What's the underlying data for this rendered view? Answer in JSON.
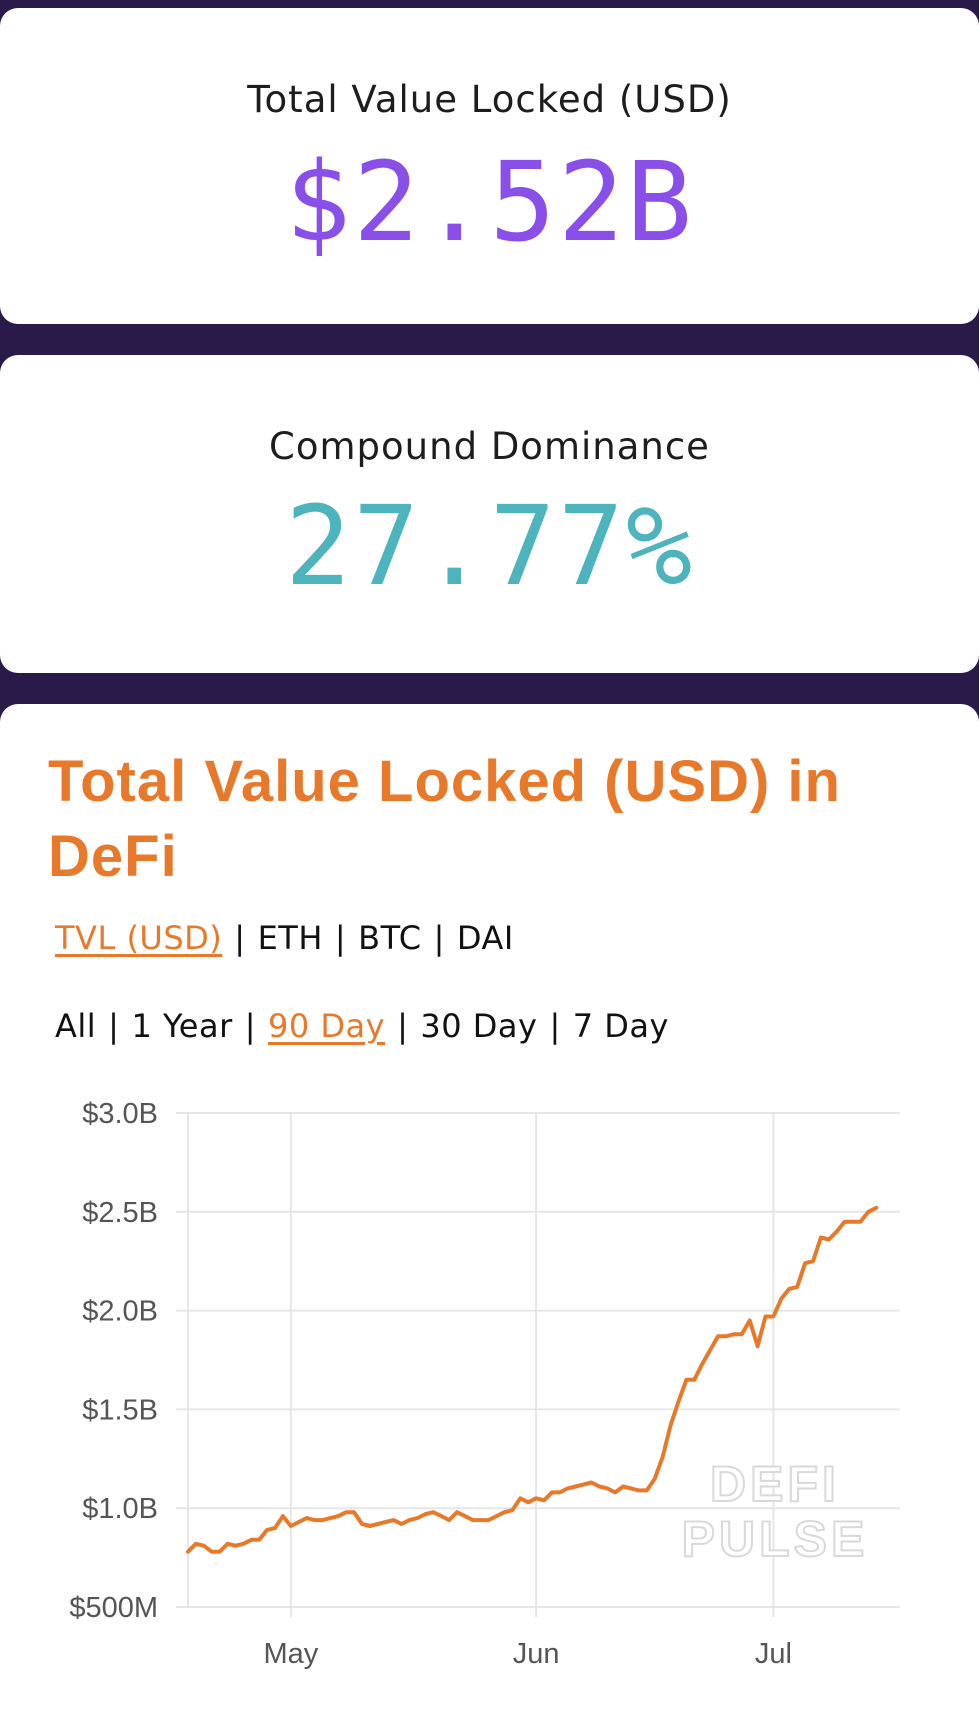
{
  "stats": {
    "tvl": {
      "label": "Total Value Locked (USD)",
      "value": "$2.52B"
    },
    "dominance": {
      "label": "Compound Dominance",
      "value": "27.77%"
    }
  },
  "chart_section": {
    "title": "Total Value Locked (USD) in DeFi",
    "metric_options": [
      {
        "label": "TVL (USD)",
        "active": true
      },
      {
        "label": "ETH",
        "active": false
      },
      {
        "label": "BTC",
        "active": false
      },
      {
        "label": "DAI",
        "active": false
      }
    ],
    "range_options": [
      {
        "label": "All",
        "active": false
      },
      {
        "label": "1 Year",
        "active": false
      },
      {
        "label": "90 Day",
        "active": true
      },
      {
        "label": "30 Day",
        "active": false
      },
      {
        "label": "7 Day",
        "active": false
      }
    ],
    "watermark": [
      "DEFI",
      "PULSE"
    ]
  },
  "colors": {
    "background": "#2a1a4a",
    "tvl_value": "#8a4fe8",
    "dominance_value": "#4db3bd",
    "accent": "#e8792b"
  },
  "chart_data": {
    "type": "line",
    "title": "Total Value Locked (USD) in DeFi",
    "xlabel": "",
    "ylabel": "",
    "y_tick_labels": [
      "$500M",
      "$1.0B",
      "$1.5B",
      "$2.0B",
      "$2.5B",
      "$3.0B"
    ],
    "y_ticks": [
      0.5,
      1.0,
      1.5,
      2.0,
      2.5,
      3.0
    ],
    "ylim": [
      0.5,
      3.0
    ],
    "x_tick_labels": [
      "May",
      "Jun",
      "Jul"
    ],
    "x_ticks": [
      "2020-05-01",
      "2020-06-01",
      "2020-07-01"
    ],
    "xlim": [
      "2020-04-18",
      "2020-07-17"
    ],
    "grid": true,
    "series": [
      {
        "values_unit": "billions USD",
        "points": [
          [
            "2020-04-18",
            0.78
          ],
          [
            "2020-04-19",
            0.82
          ],
          [
            "2020-04-20",
            0.81
          ],
          [
            "2020-04-21",
            0.78
          ],
          [
            "2020-04-22",
            0.78
          ],
          [
            "2020-04-23",
            0.82
          ],
          [
            "2020-04-24",
            0.81
          ],
          [
            "2020-04-25",
            0.82
          ],
          [
            "2020-04-26",
            0.84
          ],
          [
            "2020-04-27",
            0.84
          ],
          [
            "2020-04-28",
            0.89
          ],
          [
            "2020-04-29",
            0.9
          ],
          [
            "2020-04-30",
            0.96
          ],
          [
            "2020-05-01",
            0.91
          ],
          [
            "2020-05-02",
            0.93
          ],
          [
            "2020-05-03",
            0.95
          ],
          [
            "2020-05-04",
            0.94
          ],
          [
            "2020-05-05",
            0.94
          ],
          [
            "2020-05-06",
            0.95
          ],
          [
            "2020-05-07",
            0.96
          ],
          [
            "2020-05-08",
            0.98
          ],
          [
            "2020-05-09",
            0.98
          ],
          [
            "2020-05-10",
            0.92
          ],
          [
            "2020-05-11",
            0.91
          ],
          [
            "2020-05-12",
            0.92
          ],
          [
            "2020-05-13",
            0.93
          ],
          [
            "2020-05-14",
            0.94
          ],
          [
            "2020-05-15",
            0.92
          ],
          [
            "2020-05-16",
            0.94
          ],
          [
            "2020-05-17",
            0.95
          ],
          [
            "2020-05-18",
            0.97
          ],
          [
            "2020-05-19",
            0.98
          ],
          [
            "2020-05-20",
            0.96
          ],
          [
            "2020-05-21",
            0.94
          ],
          [
            "2020-05-22",
            0.98
          ],
          [
            "2020-05-23",
            0.96
          ],
          [
            "2020-05-24",
            0.94
          ],
          [
            "2020-05-25",
            0.94
          ],
          [
            "2020-05-26",
            0.94
          ],
          [
            "2020-05-27",
            0.96
          ],
          [
            "2020-05-28",
            0.98
          ],
          [
            "2020-05-29",
            0.99
          ],
          [
            "2020-05-30",
            1.05
          ],
          [
            "2020-05-31",
            1.03
          ],
          [
            "2020-06-01",
            1.05
          ],
          [
            "2020-06-02",
            1.04
          ],
          [
            "2020-06-03",
            1.08
          ],
          [
            "2020-06-04",
            1.08
          ],
          [
            "2020-06-05",
            1.1
          ],
          [
            "2020-06-06",
            1.11
          ],
          [
            "2020-06-07",
            1.12
          ],
          [
            "2020-06-08",
            1.13
          ],
          [
            "2020-06-09",
            1.11
          ],
          [
            "2020-06-10",
            1.1
          ],
          [
            "2020-06-11",
            1.08
          ],
          [
            "2020-06-12",
            1.11
          ],
          [
            "2020-06-13",
            1.1
          ],
          [
            "2020-06-14",
            1.09
          ],
          [
            "2020-06-15",
            1.09
          ],
          [
            "2020-06-16",
            1.15
          ],
          [
            "2020-06-17",
            1.26
          ],
          [
            "2020-06-18",
            1.42
          ],
          [
            "2020-06-19",
            1.54
          ],
          [
            "2020-06-20",
            1.65
          ],
          [
            "2020-06-21",
            1.65
          ],
          [
            "2020-06-22",
            1.73
          ],
          [
            "2020-06-23",
            1.8
          ],
          [
            "2020-06-24",
            1.87
          ],
          [
            "2020-06-25",
            1.87
          ],
          [
            "2020-06-26",
            1.88
          ],
          [
            "2020-06-27",
            1.88
          ],
          [
            "2020-06-28",
            1.95
          ],
          [
            "2020-06-29",
            1.82
          ],
          [
            "2020-06-30",
            1.97
          ],
          [
            "2020-07-01",
            1.97
          ],
          [
            "2020-07-02",
            2.06
          ],
          [
            "2020-07-03",
            2.11
          ],
          [
            "2020-07-04",
            2.12
          ],
          [
            "2020-07-05",
            2.24
          ],
          [
            "2020-07-06",
            2.25
          ],
          [
            "2020-07-07",
            2.37
          ],
          [
            "2020-07-08",
            2.36
          ],
          [
            "2020-07-09",
            2.4
          ],
          [
            "2020-07-10",
            2.45
          ],
          [
            "2020-07-11",
            2.45
          ],
          [
            "2020-07-12",
            2.45
          ],
          [
            "2020-07-13",
            2.5
          ],
          [
            "2020-07-14",
            2.52
          ]
        ]
      }
    ]
  }
}
